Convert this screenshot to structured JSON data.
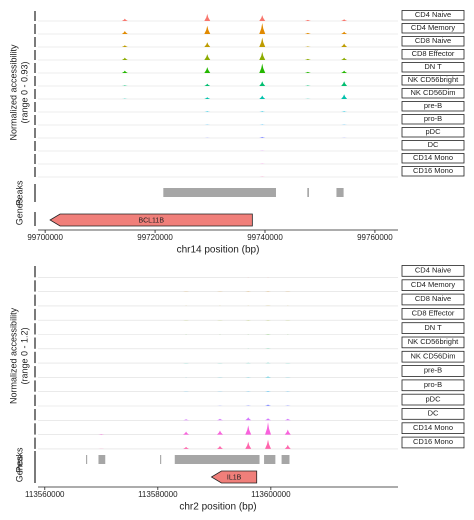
{
  "chart_data": [
    {
      "type": "coverage",
      "ylabel": "Normalized accessibility",
      "range_label": "(range 0 - 0.93)",
      "ylim": [
        0,
        0.93
      ],
      "xlabel": "chr14 position (bp)",
      "xlim": [
        99698700,
        99764200
      ],
      "xticks": [
        99700000,
        99720000,
        99740000,
        99760000
      ],
      "x": [
        99714500,
        99729500,
        99739500,
        99747800,
        99754400
      ],
      "series": [
        {
          "name": "CD4 Naive",
          "color": "#F8766D",
          "values": [
            0.2,
            0.6,
            0.5,
            0.1,
            0.15
          ]
        },
        {
          "name": "CD4 Memory",
          "color": "#E18A00",
          "values": [
            0.25,
            0.7,
            0.93,
            0.1,
            0.2
          ]
        },
        {
          "name": "CD8 Naive",
          "color": "#BE9C00",
          "values": [
            0.15,
            0.4,
            0.8,
            0.05,
            0.3
          ]
        },
        {
          "name": "CD8 Effector",
          "color": "#8CAB00",
          "values": [
            0.2,
            0.5,
            0.7,
            0.1,
            0.2
          ]
        },
        {
          "name": "DN T",
          "color": "#24B700",
          "values": [
            0.2,
            0.5,
            0.8,
            0.1,
            0.2
          ]
        },
        {
          "name": "NK CD56bright",
          "color": "#00BE70",
          "values": [
            0.05,
            0.2,
            0.4,
            0.05,
            0.4
          ]
        },
        {
          "name": "NK CD56Dim",
          "color": "#00C1AB",
          "values": [
            0.03,
            0.15,
            0.3,
            0.02,
            0.4
          ]
        },
        {
          "name": "pre-B",
          "color": "#00BBDA",
          "values": [
            0,
            0.05,
            0.05,
            0,
            0.05
          ]
        },
        {
          "name": "pro-B",
          "color": "#00ACFC",
          "values": [
            0,
            0.02,
            0.03,
            0,
            0.02
          ]
        },
        {
          "name": "pDC",
          "color": "#8B93FF",
          "values": [
            0,
            0.02,
            0.1,
            0,
            0.02
          ]
        },
        {
          "name": "DC",
          "color": "#D575FE",
          "values": [
            0,
            0,
            0.02,
            0,
            0
          ]
        },
        {
          "name": "CD14 Mono",
          "color": "#F962DD",
          "values": [
            0,
            0,
            0.02,
            0,
            0
          ]
        },
        {
          "name": "CD16 Mono",
          "color": "#FF65AC",
          "values": [
            0,
            0,
            0.02,
            0,
            0
          ]
        }
      ],
      "peaks_label": "Peaks",
      "peak_color": "#a6a6a6",
      "peaks": [
        [
          99721500,
          99742000
        ],
        [
          99747700,
          99748000
        ],
        [
          99753000,
          99754300
        ]
      ],
      "genes_label": "Genes",
      "gene_color": "#f07f7a",
      "genes": [
        {
          "name": "BCL11B",
          "start": 99700900,
          "end": 99737700,
          "strand": "-"
        }
      ]
    },
    {
      "type": "coverage",
      "ylabel": "Normalized accessibility",
      "range_label": "(range 0 - 1.2)",
      "ylim": [
        0,
        1.2
      ],
      "xlabel": "chr2 position (bp)",
      "xlim": [
        113558800,
        113622500
      ],
      "xticks": [
        113560000,
        113580000,
        113600000
      ],
      "x": [
        113570000,
        113585000,
        113591000,
        113596000,
        113599500,
        113603000
      ],
      "series": [
        {
          "name": "CD4 Naive",
          "color": "#F8766D",
          "values": [
            0,
            0.01,
            0.01,
            0.02,
            0.02,
            0.01
          ]
        },
        {
          "name": "CD4 Memory",
          "color": "#E18A00",
          "values": [
            0,
            0.01,
            0.01,
            0.02,
            0.02,
            0.01
          ]
        },
        {
          "name": "CD8 Naive",
          "color": "#BE9C00",
          "values": [
            0,
            0.01,
            0.01,
            0.01,
            0.02,
            0.01
          ]
        },
        {
          "name": "CD8 Effector",
          "color": "#8CAB00",
          "values": [
            0,
            0.01,
            0.01,
            0.02,
            0.02,
            0.01
          ]
        },
        {
          "name": "DN T",
          "color": "#24B700",
          "values": [
            0,
            0.01,
            0.01,
            0.01,
            0.02,
            0.01
          ]
        },
        {
          "name": "NK CD56bright",
          "color": "#00BE70",
          "values": [
            0,
            0.01,
            0.01,
            0.02,
            0.03,
            0.01
          ]
        },
        {
          "name": "NK CD56Dim",
          "color": "#00C1AB",
          "values": [
            0,
            0.01,
            0.01,
            0.02,
            0.03,
            0.01
          ]
        },
        {
          "name": "pre-B",
          "color": "#00BBDA",
          "values": [
            0,
            0.01,
            0.02,
            0.03,
            0.08,
            0.02
          ]
        },
        {
          "name": "pro-B",
          "color": "#00ACFC",
          "values": [
            0,
            0.01,
            0.01,
            0.02,
            0.05,
            0.02
          ]
        },
        {
          "name": "pDC",
          "color": "#8B93FF",
          "values": [
            0,
            0,
            0.02,
            0.05,
            0.15,
            0.05
          ]
        },
        {
          "name": "DC",
          "color": "#D575FE",
          "values": [
            0,
            0.1,
            0.15,
            0.3,
            0.2,
            0.15
          ]
        },
        {
          "name": "CD14 Mono",
          "color": "#F962DD",
          "values": [
            0.05,
            0.3,
            0.4,
            0.9,
            1.2,
            0.5
          ]
        },
        {
          "name": "CD16 Mono",
          "color": "#FF65AC",
          "values": [
            0.02,
            0.2,
            0.3,
            0.7,
            0.9,
            0.4
          ]
        }
      ],
      "peaks_label": "Peaks",
      "peak_color": "#a6a6a6",
      "peaks": [
        [
          113567300,
          113567500
        ],
        [
          113569500,
          113570700
        ],
        [
          113580400,
          113580600
        ],
        [
          113583000,
          113598000
        ],
        [
          113598800,
          113600800
        ],
        [
          113601900,
          113603300
        ]
      ],
      "genes_label": "Genes",
      "gene_color": "#f07f7a",
      "genes": [
        {
          "name": "IL1B",
          "start": 113589500,
          "end": 113597500,
          "strand": "-"
        }
      ]
    }
  ]
}
